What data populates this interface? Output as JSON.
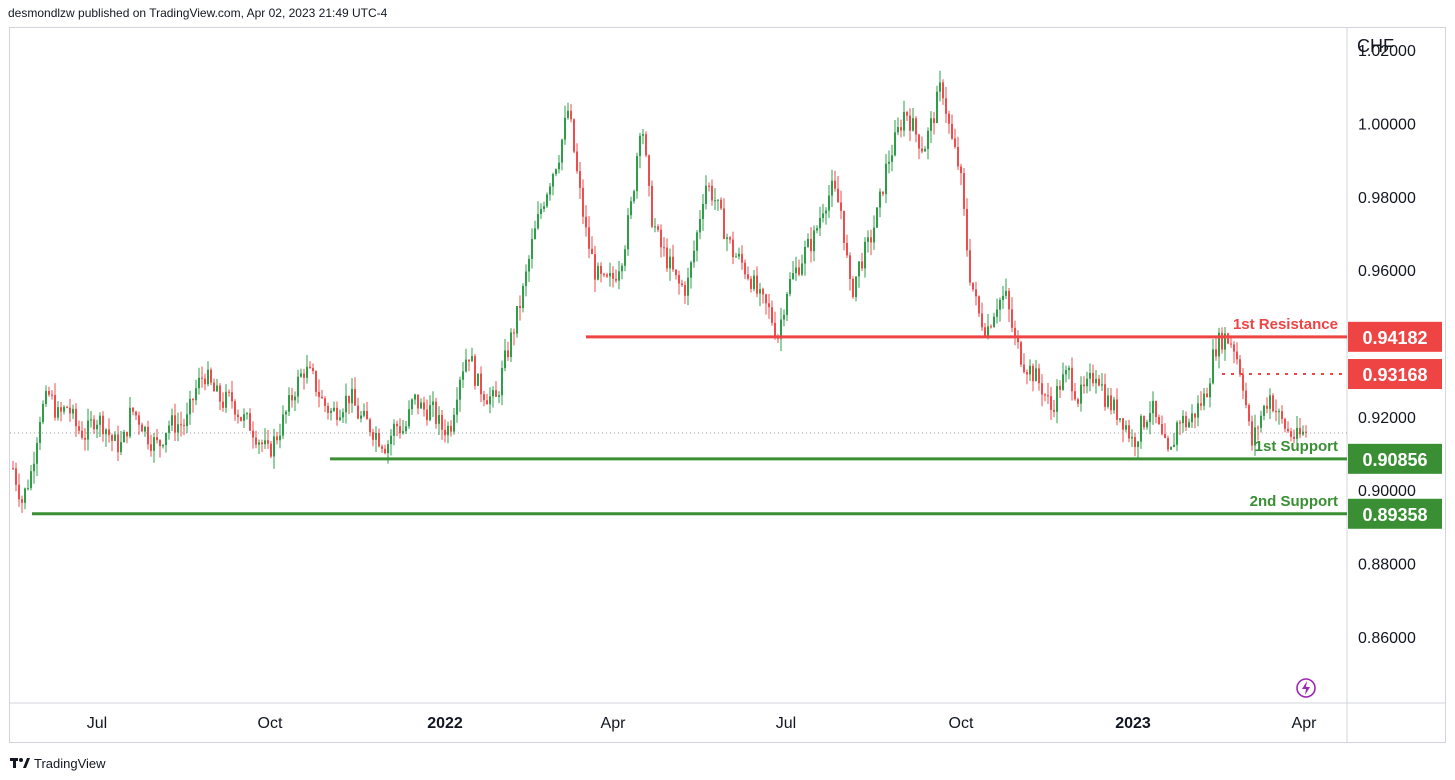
{
  "header": {
    "text": "desmondlzw published on TradingView.com, Apr 02, 2023 21:49 UTC-4"
  },
  "footer": {
    "brand": "TradingView",
    "logo_icon": "tradingview-logo-icon"
  },
  "colors": {
    "up": "#2e9f48",
    "down": "#ef4d4d",
    "resistance": "#ef4444",
    "support": "#3a8f34",
    "badge_text": "#ffffff"
  },
  "chart_data": {
    "type": "candlestick",
    "symbol_axis_label": "CHF",
    "y_axis": {
      "ticks": [
        "1.02000",
        "1.00000",
        "0.98000",
        "0.96000",
        "0.92000",
        "0.90000",
        "0.88000",
        "0.86000"
      ],
      "range": [
        0.842,
        1.026
      ]
    },
    "x_axis": {
      "labels": [
        {
          "text": "Jul",
          "bold": false
        },
        {
          "text": "Oct",
          "bold": false
        },
        {
          "text": "2022",
          "bold": true
        },
        {
          "text": "Apr",
          "bold": false
        },
        {
          "text": "Jul",
          "bold": false
        },
        {
          "text": "Oct",
          "bold": false
        },
        {
          "text": "2023",
          "bold": true
        },
        {
          "text": "Apr",
          "bold": false
        }
      ]
    },
    "levels": [
      {
        "name": "1st Resistance",
        "value": "0.94182",
        "kind": "resistance",
        "style": "solid"
      },
      {
        "name": "",
        "value": "0.93168",
        "kind": "resistance",
        "style": "dotted"
      },
      {
        "name": "1st Support",
        "value": "0.90856",
        "kind": "support",
        "style": "solid"
      },
      {
        "name": "2nd Support",
        "value": "0.89358",
        "kind": "support",
        "style": "solid"
      }
    ],
    "price_path": [
      [
        0.906,
        0.9
      ],
      [
        0.897,
        0.9
      ],
      [
        0.905,
        0.9
      ],
      [
        0.921,
        0.0
      ],
      [
        0.926,
        0.0
      ],
      [
        0.92,
        0.0
      ],
      [
        0.923,
        0.0
      ],
      [
        0.917,
        0.0
      ],
      [
        0.915,
        0.0
      ],
      [
        0.92,
        0.0
      ],
      [
        0.918,
        0.0
      ],
      [
        0.913,
        0.0
      ],
      [
        0.912,
        0.0
      ],
      [
        0.922,
        0.0
      ],
      [
        0.919,
        0.0
      ],
      [
        0.914,
        0.0
      ],
      [
        0.912,
        0.0
      ],
      [
        0.918,
        0.0
      ],
      [
        0.918,
        0.0
      ],
      [
        0.918,
        0.0
      ],
      [
        0.927,
        0.0
      ],
      [
        0.932,
        0.0
      ],
      [
        0.927,
        0.0
      ],
      [
        0.924,
        0.0
      ],
      [
        0.925,
        0.0
      ],
      [
        0.92,
        0.0
      ],
      [
        0.918,
        0.0
      ],
      [
        0.914,
        0.0
      ],
      [
        0.91,
        0.0
      ],
      [
        0.915,
        0.0
      ],
      [
        0.921,
        0.0
      ],
      [
        0.928,
        0.0
      ],
      [
        0.933,
        0.0
      ],
      [
        0.93,
        0.0
      ],
      [
        0.924,
        0.0
      ],
      [
        0.921,
        0.0
      ],
      [
        0.923,
        0.0
      ],
      [
        0.926,
        0.0
      ],
      [
        0.92,
        0.0
      ],
      [
        0.918,
        0.0
      ],
      [
        0.915,
        0.0
      ],
      [
        0.912,
        0.0
      ],
      [
        0.918,
        0.0
      ],
      [
        0.916,
        0.0
      ],
      [
        0.925,
        0.0
      ],
      [
        0.922,
        0.0
      ],
      [
        0.922,
        0.0
      ],
      [
        0.917,
        0.0
      ],
      [
        0.917,
        0.0
      ],
      [
        0.931,
        0.0
      ],
      [
        0.938,
        0.0
      ],
      [
        0.929,
        0.0
      ],
      [
        0.926,
        0.0
      ],
      [
        0.924,
        0.0
      ],
      [
        0.935,
        0.0
      ],
      [
        0.944,
        0.0
      ],
      [
        0.954,
        0.0
      ],
      [
        0.967,
        0.0
      ],
      [
        0.977,
        0.0
      ],
      [
        0.985,
        0.0
      ],
      [
        0.992,
        0.0
      ],
      [
        1.004,
        0.0
      ],
      [
        0.985,
        0.0
      ],
      [
        0.969,
        0.0
      ],
      [
        0.959,
        0.0
      ],
      [
        0.956,
        0.0
      ],
      [
        0.958,
        0.0
      ],
      [
        0.965,
        0.0
      ],
      [
        0.979,
        0.0
      ],
      [
        1.003,
        0.0
      ],
      [
        0.976,
        0.0
      ],
      [
        0.967,
        0.0
      ],
      [
        0.962,
        0.0
      ],
      [
        0.956,
        0.0
      ],
      [
        0.955,
        0.0
      ],
      [
        0.968,
        0.0
      ],
      [
        0.984,
        0.0
      ],
      [
        0.98,
        0.0
      ],
      [
        0.972,
        0.0
      ],
      [
        0.965,
        0.0
      ],
      [
        0.962,
        0.0
      ],
      [
        0.958,
        0.0
      ],
      [
        0.952,
        0.0
      ],
      [
        0.949,
        0.0
      ],
      [
        0.942,
        0.0
      ],
      [
        0.955,
        0.0
      ],
      [
        0.96,
        0.0
      ],
      [
        0.965,
        0.0
      ],
      [
        0.969,
        0.0
      ],
      [
        0.978,
        0.0
      ],
      [
        0.982,
        0.0
      ],
      [
        0.976,
        0.0
      ],
      [
        0.953,
        0.0
      ],
      [
        0.962,
        0.0
      ],
      [
        0.967,
        0.0
      ],
      [
        0.976,
        0.0
      ],
      [
        0.989,
        0.0
      ],
      [
        0.996,
        0.0
      ],
      [
        1.004,
        0.0
      ],
      [
        0.998,
        0.0
      ],
      [
        0.993,
        0.0
      ],
      [
        1.001,
        0.0
      ],
      [
        1.011,
        0.0
      ],
      [
        0.996,
        0.0
      ],
      [
        0.987,
        0.0
      ],
      [
        0.96,
        0.0
      ],
      [
        0.948,
        0.0
      ],
      [
        0.944,
        0.0
      ],
      [
        0.951,
        0.0
      ],
      [
        0.953,
        0.0
      ],
      [
        0.941,
        0.0
      ],
      [
        0.935,
        0.0
      ],
      [
        0.932,
        0.0
      ],
      [
        0.928,
        0.0
      ],
      [
        0.922,
        0.0
      ],
      [
        0.929,
        0.0
      ],
      [
        0.932,
        0.0
      ],
      [
        0.925,
        0.0
      ],
      [
        0.928,
        0.0
      ],
      [
        0.933,
        0.0
      ],
      [
        0.925,
        0.0
      ],
      [
        0.922,
        0.0
      ],
      [
        0.919,
        0.0
      ],
      [
        0.913,
        0.0
      ],
      [
        0.918,
        0.0
      ],
      [
        0.923,
        0.0
      ],
      [
        0.915,
        0.0
      ],
      [
        0.908,
        0.0
      ],
      [
        0.92,
        0.0
      ],
      [
        0.918,
        0.0
      ],
      [
        0.922,
        0.0
      ],
      [
        0.926,
        0.0
      ],
      [
        0.939,
        0.0
      ],
      [
        0.942,
        0.0
      ],
      [
        0.94,
        0.0
      ],
      [
        0.931,
        0.0
      ],
      [
        0.912,
        0.0
      ],
      [
        0.92,
        0.0
      ],
      [
        0.926,
        0.0
      ],
      [
        0.92,
        0.0
      ],
      [
        0.916,
        0.0
      ],
      [
        0.914,
        0.0
      ],
      [
        0.916,
        0.0
      ]
    ]
  }
}
